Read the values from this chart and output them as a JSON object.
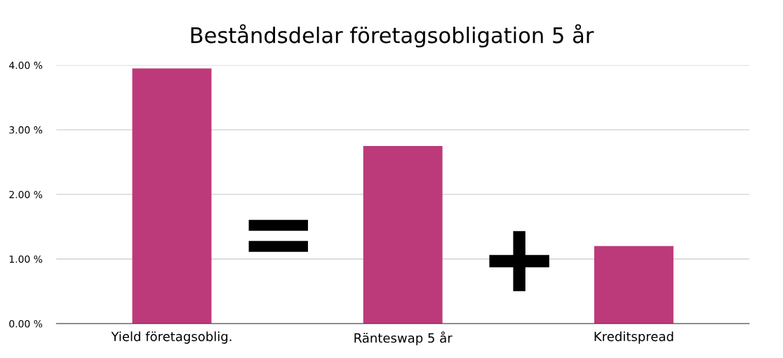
{
  "chart_data": {
    "type": "bar",
    "title": "Beståndsdelar företagsobligation 5 år",
    "categories": [
      "Yield företagsoblig.",
      "Ränteswap 5 år",
      "Kreditspread"
    ],
    "values": [
      3.95,
      2.75,
      1.2
    ],
    "color": "#bc3a7a",
    "ylim": [
      0,
      4
    ],
    "yticks": [
      {
        "value": 0,
        "label": "0.00 %"
      },
      {
        "value": 1,
        "label": "1.00 %"
      },
      {
        "value": 2,
        "label": "2.00 %"
      },
      {
        "value": 3,
        "label": "3.00 %"
      },
      {
        "value": 4,
        "label": "4.00 %"
      }
    ],
    "grid": "y",
    "legend": false
  }
}
